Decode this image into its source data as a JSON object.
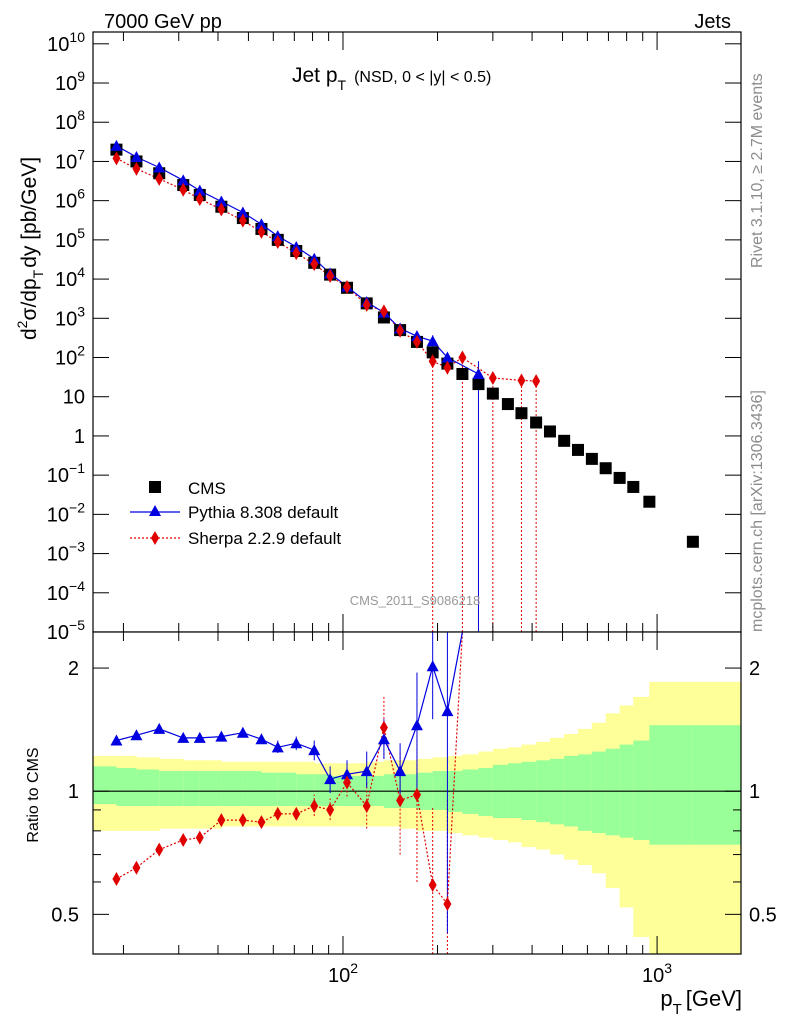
{
  "header": {
    "left": "7000 GeV pp",
    "right": "Jets"
  },
  "side_text": {
    "rivet": "Rivet 3.1.10, ≥ 2.7M events",
    "mcplots": "mcplots.cern.ch [arXiv:1306.3436]"
  },
  "chart_data": {
    "type": "scatter",
    "title_main": "Jet p",
    "title_sub": "T",
    "title_cond": "(NSD,   0 < |y| < 0.5)",
    "watermark": "CMS_2011_S9086218",
    "xlabel_main": "p",
    "xlabel_sub": "T",
    "xlabel_unit": "[GeV]",
    "xscale": "log",
    "xlim": [
      16,
      1850
    ],
    "xtick_labels": [
      {
        "value": 100,
        "base": "10",
        "exp": "2"
      },
      {
        "value": 1000,
        "base": "10",
        "exp": "3"
      }
    ],
    "top": {
      "ylabel": "d²σ/dp_T dy [pb/GeV]",
      "ylabel_parts": {
        "d": "d",
        "sup2": "2",
        "sigma": "σ/dp",
        "subT": "T",
        "dy": "dy [pb/GeV]"
      },
      "yscale": "log",
      "ylim": [
        1e-05,
        20000000000.0
      ],
      "ytick_labels": [
        {
          "value": 10000000000.0,
          "base": "10",
          "exp": "10"
        },
        {
          "value": 1000000000.0,
          "base": "10",
          "exp": "9"
        },
        {
          "value": 100000000.0,
          "base": "10",
          "exp": "8"
        },
        {
          "value": 10000000.0,
          "base": "10",
          "exp": "7"
        },
        {
          "value": 1000000.0,
          "base": "10",
          "exp": "6"
        },
        {
          "value": 100000.0,
          "base": "10",
          "exp": "5"
        },
        {
          "value": 10000.0,
          "base": "10",
          "exp": "4"
        },
        {
          "value": 1000.0,
          "base": "10",
          "exp": "3"
        },
        {
          "value": 100.0,
          "base": "10",
          "exp": "2"
        },
        {
          "value": 10,
          "base": "10",
          "exp": ""
        },
        {
          "value": 1,
          "base": "1",
          "exp": ""
        },
        {
          "value": 0.1,
          "base": "10",
          "exp": "−1"
        },
        {
          "value": 0.01,
          "base": "10",
          "exp": "−2"
        },
        {
          "value": 0.001,
          "base": "10",
          "exp": "−3"
        },
        {
          "value": 0.0001,
          "base": "10",
          "exp": "−4"
        },
        {
          "value": 1e-05,
          "base": "10",
          "exp": "−5"
        }
      ],
      "series": [
        {
          "name": "CMS",
          "color": "#000000",
          "marker": "square",
          "points": [
            [
              19,
              20000000.0
            ],
            [
              22,
              10000000.0
            ],
            [
              26,
              5000000.0
            ],
            [
              31,
              2500000.0
            ],
            [
              35,
              1400000.0
            ],
            [
              41,
              700000.0
            ],
            [
              48,
              360000.0
            ],
            [
              55,
              190000.0
            ],
            [
              62,
              100000.0
            ],
            [
              71,
              52000.0
            ],
            [
              81,
              26000.0
            ],
            [
              91,
              13000.0
            ],
            [
              103,
              6000.0
            ],
            [
              119,
              2400.0
            ],
            [
              135,
              1050.0
            ],
            [
              152,
              500.0
            ],
            [
              172,
              250.0
            ],
            [
              193,
              135.0
            ],
            [
              215,
              70
            ],
            [
              240,
              38
            ],
            [
              270,
              21
            ],
            [
              300,
              12
            ],
            [
              335,
              6.5
            ],
            [
              370,
              3.8
            ],
            [
              412,
              2.2
            ],
            [
              456,
              1.3
            ],
            [
              506,
              0.75
            ],
            [
              560,
              0.44
            ],
            [
              620,
              0.26
            ],
            [
              686,
              0.15
            ],
            [
              760,
              0.085
            ],
            [
              840,
              0.05
            ],
            [
              945,
              0.021
            ],
            [
              1300,
              0.002
            ]
          ]
        },
        {
          "name": "Pythia 8.308 default",
          "color": "#0000e0",
          "marker": "triangle",
          "points": [
            [
              19,
              25000000.0
            ],
            [
              22,
              13000000.0
            ],
            [
              26,
              7000000.0
            ],
            [
              31,
              3300000.0
            ],
            [
              35,
              1800000.0
            ],
            [
              41,
              950000.0
            ],
            [
              48,
              500000.0
            ],
            [
              55,
              250000.0
            ],
            [
              62,
              125000.0
            ],
            [
              71,
              66000.0
            ],
            [
              81,
              33000.0
            ],
            [
              91,
              14000.0
            ],
            [
              103,
              6400.0
            ],
            [
              119,
              2600.0
            ],
            [
              135,
              1400.0
            ],
            [
              152,
              550.0
            ],
            [
              172,
              350.0
            ],
            [
              193,
              260.0
            ],
            [
              215,
              100.0
            ],
            [
              270,
              38
            ]
          ],
          "vlines": [
            [
              270,
              5e-06,
              80
            ],
            [
              172,
              220.0,
              480.0
            ],
            [
              193,
              180.0,
              370.0
            ]
          ]
        },
        {
          "name": "Sherpa 2.2.9 default",
          "color": "#e00000",
          "marker": "diamond",
          "points": [
            [
              19,
              12000000.0
            ],
            [
              22,
              6500000.0
            ],
            [
              26,
              3600000.0
            ],
            [
              31,
              1900000.0
            ],
            [
              35,
              1100000.0
            ],
            [
              41,
              600000.0
            ],
            [
              48,
              310000.0
            ],
            [
              55,
              160000.0
            ],
            [
              62,
              88000.0
            ],
            [
              71,
              46000.0
            ],
            [
              81,
              24000.0
            ],
            [
              91,
              12000.0
            ],
            [
              103,
              6300.0
            ],
            [
              119,
              2200.0
            ],
            [
              135,
              1500.0
            ],
            [
              152,
              480.0
            ],
            [
              172,
              250.0
            ],
            [
              193,
              80
            ],
            [
              215,
              55
            ],
            [
              240,
              100
            ],
            [
              300,
              30
            ],
            [
              370,
              26
            ],
            [
              412,
              25
            ]
          ],
          "vlines": [
            [
              193,
              5e-06,
              80
            ],
            [
              240,
              5e-06,
              100
            ],
            [
              300,
              5e-06,
              30
            ],
            [
              370,
              5e-06,
              30
            ],
            [
              412,
              5e-06,
              30
            ]
          ]
        }
      ]
    },
    "bottom": {
      "ylabel": "Ratio to CMS",
      "yscale": "log",
      "ylim": [
        0.4,
        2.45
      ],
      "ytick_labels": [
        {
          "value": 2,
          "text": "2"
        },
        {
          "value": 1,
          "text": "1"
        },
        {
          "value": 0.5,
          "text": "0.5"
        }
      ],
      "reference_line": 1,
      "band_edges": [
        16,
        19,
        22,
        26,
        31,
        35,
        41,
        48,
        55,
        62,
        71,
        81,
        91,
        103,
        119,
        135,
        152,
        172,
        193,
        215,
        240,
        270,
        300,
        335,
        370,
        412,
        456,
        506,
        560,
        620,
        686,
        760,
        840,
        945,
        1300,
        1850
      ],
      "band_green": [
        [
          0.93,
          1.15
        ],
        [
          0.92,
          1.14
        ],
        [
          0.92,
          1.13
        ],
        [
          0.92,
          1.12
        ],
        [
          0.92,
          1.12
        ],
        [
          0.92,
          1.12
        ],
        [
          0.92,
          1.12
        ],
        [
          0.92,
          1.12
        ],
        [
          0.92,
          1.11
        ],
        [
          0.92,
          1.11
        ],
        [
          0.92,
          1.1
        ],
        [
          0.92,
          1.1
        ],
        [
          0.92,
          1.09
        ],
        [
          0.92,
          1.09
        ],
        [
          0.92,
          1.09
        ],
        [
          0.91,
          1.1
        ],
        [
          0.91,
          1.1
        ],
        [
          0.9,
          1.11
        ],
        [
          0.9,
          1.12
        ],
        [
          0.89,
          1.12
        ],
        [
          0.88,
          1.13
        ],
        [
          0.87,
          1.14
        ],
        [
          0.86,
          1.16
        ],
        [
          0.86,
          1.17
        ],
        [
          0.85,
          1.18
        ],
        [
          0.84,
          1.19
        ],
        [
          0.83,
          1.2
        ],
        [
          0.82,
          1.22
        ],
        [
          0.8,
          1.23
        ],
        [
          0.79,
          1.25
        ],
        [
          0.78,
          1.27
        ],
        [
          0.77,
          1.3
        ],
        [
          0.76,
          1.33
        ],
        [
          0.74,
          1.45
        ],
        [
          0.74,
          1.45
        ]
      ],
      "band_yellow": [
        [
          0.8,
          1.22
        ],
        [
          0.8,
          1.22
        ],
        [
          0.8,
          1.21
        ],
        [
          0.81,
          1.2
        ],
        [
          0.81,
          1.19
        ],
        [
          0.81,
          1.19
        ],
        [
          0.82,
          1.18
        ],
        [
          0.82,
          1.18
        ],
        [
          0.82,
          1.18
        ],
        [
          0.82,
          1.18
        ],
        [
          0.82,
          1.18
        ],
        [
          0.82,
          1.17
        ],
        [
          0.82,
          1.17
        ],
        [
          0.82,
          1.17
        ],
        [
          0.82,
          1.18
        ],
        [
          0.82,
          1.19
        ],
        [
          0.81,
          1.19
        ],
        [
          0.8,
          1.2
        ],
        [
          0.8,
          1.21
        ],
        [
          0.79,
          1.22
        ],
        [
          0.78,
          1.23
        ],
        [
          0.77,
          1.25
        ],
        [
          0.76,
          1.27
        ],
        [
          0.75,
          1.28
        ],
        [
          0.73,
          1.3
        ],
        [
          0.72,
          1.32
        ],
        [
          0.7,
          1.35
        ],
        [
          0.68,
          1.38
        ],
        [
          0.66,
          1.42
        ],
        [
          0.63,
          1.47
        ],
        [
          0.58,
          1.55
        ],
        [
          0.52,
          1.62
        ],
        [
          0.44,
          1.7
        ],
        [
          0.4,
          1.85
        ],
        [
          0.4,
          1.85
        ]
      ],
      "series": [
        {
          "name": "Pythia 8.308 default",
          "color": "#0000e0",
          "points": [
            [
              19,
              1.33
            ],
            [
              22,
              1.37
            ],
            [
              26,
              1.42
            ],
            [
              31,
              1.35
            ],
            [
              35,
              1.35
            ],
            [
              41,
              1.36
            ],
            [
              48,
              1.39
            ],
            [
              55,
              1.34
            ],
            [
              62,
              1.28
            ],
            [
              71,
              1.31
            ],
            [
              81,
              1.26
            ],
            [
              91,
              1.07
            ],
            [
              103,
              1.1
            ],
            [
              119,
              1.12
            ],
            [
              135,
              1.34
            ],
            [
              152,
              1.12
            ],
            [
              172,
              1.45
            ],
            [
              193,
              2.02
            ],
            [
              215,
              1.57
            ],
            [
              240,
              2.6
            ]
          ],
          "errors": [
            [
              62,
              1.24,
              1.33
            ],
            [
              71,
              1.26,
              1.36
            ],
            [
              81,
              1.19,
              1.33
            ],
            [
              91,
              0.99,
              1.15
            ],
            [
              103,
              1.02,
              1.19
            ],
            [
              119,
              1.02,
              1.25
            ],
            [
              135,
              1.2,
              1.5
            ],
            [
              152,
              0.95,
              1.31
            ],
            [
              172,
              1.0,
              1.95
            ],
            [
              193,
              1.5,
              2.45
            ],
            [
              215,
              0.45,
              2.45
            ]
          ]
        },
        {
          "name": "Sherpa 2.2.9 default",
          "color": "#e00000",
          "points": [
            [
              19,
              0.61
            ],
            [
              22,
              0.65
            ],
            [
              26,
              0.72
            ],
            [
              31,
              0.76
            ],
            [
              35,
              0.77
            ],
            [
              41,
              0.85
            ],
            [
              48,
              0.85
            ],
            [
              55,
              0.84
            ],
            [
              62,
              0.88
            ],
            [
              71,
              0.88
            ],
            [
              81,
              0.92
            ],
            [
              91,
              0.9
            ],
            [
              103,
              1.05
            ],
            [
              119,
              0.92
            ],
            [
              135,
              1.43
            ],
            [
              152,
              0.95
            ],
            [
              172,
              0.98
            ],
            [
              193,
              0.59
            ],
            [
              215,
              0.53
            ],
            [
              240,
              2.6
            ]
          ],
          "errors": [
            [
              81,
              0.87,
              0.98
            ],
            [
              91,
              0.85,
              0.96
            ],
            [
              103,
              0.97,
              1.13
            ],
            [
              119,
              0.81,
              1.06
            ],
            [
              135,
              1.2,
              1.7
            ],
            [
              152,
              0.7,
              1.25
            ],
            [
              172,
              0.6,
              1.35
            ],
            [
              193,
              0.4,
              0.92
            ],
            [
              215,
              0.4,
              0.95
            ]
          ]
        }
      ]
    }
  }
}
